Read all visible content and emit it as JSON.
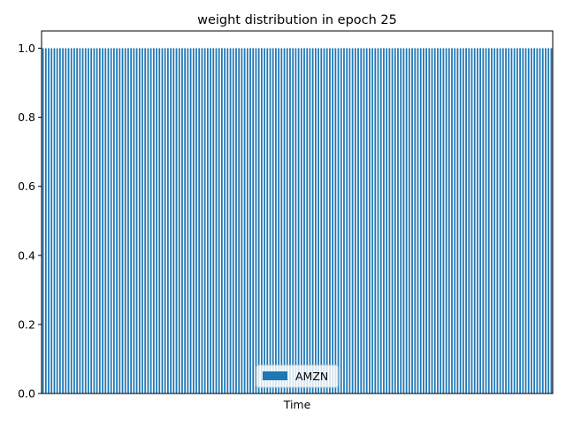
{
  "chart_data": {
    "type": "bar",
    "title": "weight distribution in epoch 25",
    "xlabel": "Time",
    "ylabel": "",
    "ylim": [
      0,
      1.05
    ],
    "yticks": [
      0.0,
      0.2,
      0.4,
      0.6,
      0.8,
      1.0
    ],
    "ytick_labels": [
      "0.0",
      "0.2",
      "0.4",
      "0.6",
      "0.8",
      "1.0"
    ],
    "grid": false,
    "legend_position": "bottom-center",
    "num_bars": 180,
    "series": [
      {
        "name": "AMZN",
        "color": "#1f77b4",
        "value_all_bars": 1.0
      }
    ]
  }
}
